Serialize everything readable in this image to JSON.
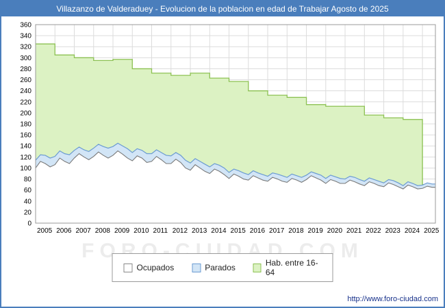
{
  "title": "Villazanzo de Valderaduey - Evolucion de la poblacion en edad de Trabajar Agosto de 2025",
  "watermark": "FORO-CIUDAD.COM",
  "footer_url": "http://www.foro-ciudad.com",
  "colors": {
    "titlebar": "#4a7ebc",
    "grid": "#dcdcdc",
    "plot_border": "#999999",
    "hab_fill": "#dcf2c3",
    "hab_stroke": "#8cc152",
    "parados_fill": "#d2e5f6",
    "parados_stroke": "#6b9bd2",
    "ocupados_fill": "#ffffff",
    "ocupados_stroke": "#7a7a7a"
  },
  "legend": [
    {
      "label": "Ocupados",
      "fill": "#ffffff",
      "stroke": "#888888"
    },
    {
      "label": "Parados",
      "fill": "#d2e5f6",
      "stroke": "#6b9bd2"
    },
    {
      "label": "Hab. entre 16-64",
      "fill": "#dcf2c3",
      "stroke": "#8cc152"
    }
  ],
  "chart_data": {
    "type": "area",
    "title": "Villazanzo de Valderaduey - Evolucion de la poblacion en edad de Trabajar Agosto de 2025",
    "xlabel": "",
    "ylabel": "",
    "ylim": [
      0,
      360
    ],
    "ytick": 20,
    "x_start": 2005,
    "x_end": 2025.67,
    "xticks": [
      2005,
      2006,
      2007,
      2008,
      2009,
      2010,
      2011,
      2012,
      2013,
      2014,
      2015,
      2016,
      2017,
      2018,
      2019,
      2020,
      2021,
      2022,
      2023,
      2024,
      2025
    ],
    "grid": true,
    "legend_position": "bottom",
    "series": [
      {
        "name": "Hab. entre 16-64",
        "mode": "yearly-step",
        "values": [
          325,
          305,
          300,
          295,
          297,
          280,
          272,
          268,
          272,
          263,
          257,
          240,
          232,
          228,
          215,
          212,
          212,
          196,
          191,
          188,
          70
        ]
      },
      {
        "name": "Ocupados",
        "mode": "quarterly",
        "values": [
          100,
          112,
          108,
          102,
          106,
          118,
          112,
          108,
          118,
          126,
          120,
          115,
          121,
          129,
          123,
          118,
          123,
          131,
          125,
          118,
          113,
          122,
          118,
          110,
          112,
          121,
          115,
          108,
          108,
          116,
          110,
          100,
          96,
          106,
          100,
          94,
          90,
          98,
          94,
          88,
          81,
          89,
          85,
          80,
          78,
          86,
          82,
          78,
          76,
          83,
          80,
          76,
          74,
          81,
          78,
          74,
          79,
          86,
          82,
          78,
          72,
          79,
          76,
          72,
          72,
          78,
          75,
          71,
          68,
          75,
          72,
          68,
          66,
          73,
          70,
          66,
          62,
          69,
          66,
          62,
          63,
          67,
          65
        ]
      },
      {
        "name": "Parados",
        "mode": "quarterly",
        "note": "band thickness stacked on top of Ocupados",
        "values": [
          14,
          12,
          15,
          16,
          15,
          13,
          14,
          16,
          14,
          12,
          13,
          15,
          15,
          14,
          16,
          18,
          16,
          14,
          15,
          17,
          15,
          13,
          14,
          16,
          14,
          12,
          13,
          15,
          14,
          12,
          13,
          14,
          13,
          11,
          12,
          13,
          12,
          10,
          11,
          12,
          11,
          9,
          10,
          11,
          10,
          9,
          9,
          10,
          9,
          8,
          9,
          10,
          9,
          8,
          8,
          9,
          8,
          7,
          8,
          9,
          9,
          8,
          8,
          9,
          8,
          7,
          8,
          8,
          8,
          7,
          7,
          8,
          7,
          6,
          7,
          7,
          6,
          6,
          6,
          6,
          6,
          6,
          6
        ]
      }
    ]
  }
}
